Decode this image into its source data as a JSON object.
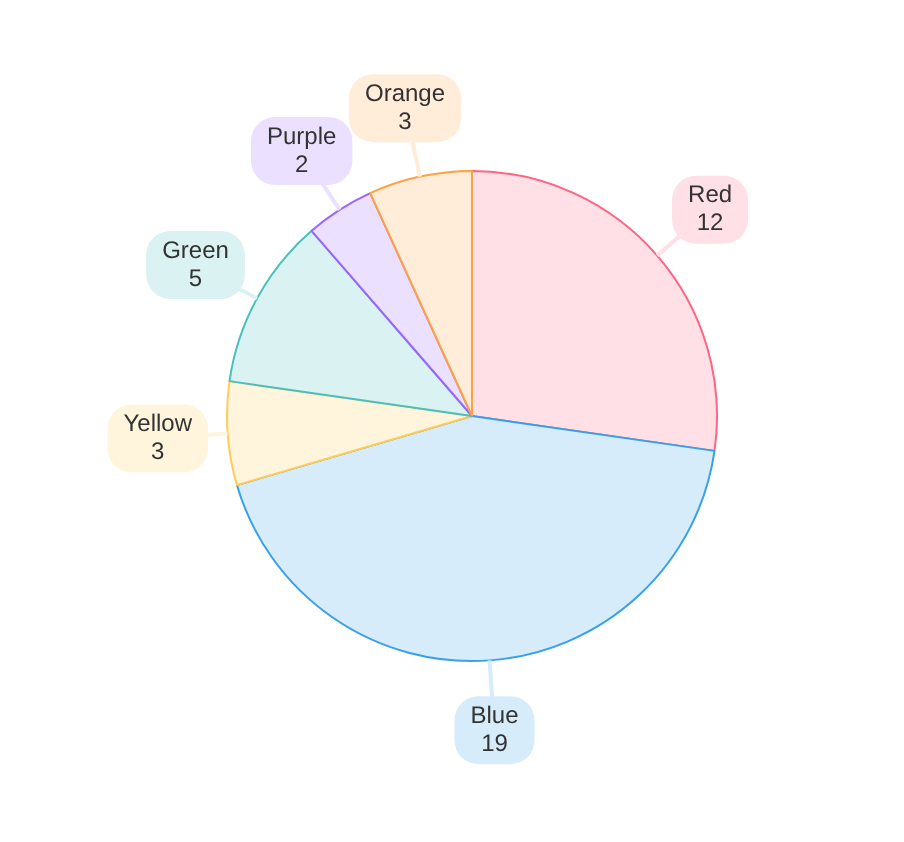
{
  "chart_data": {
    "type": "pie",
    "categories": [
      "Red",
      "Blue",
      "Yellow",
      "Green",
      "Purple",
      "Orange"
    ],
    "values": [
      12,
      19,
      3,
      5,
      2,
      3
    ],
    "colors": [
      "#ffe0e6",
      "#d7ecfb",
      "#fff5dd",
      "#dbf2f2",
      "#ebe0ff",
      "#ffecd9"
    ],
    "data_labels": true,
    "legend": false
  }
}
